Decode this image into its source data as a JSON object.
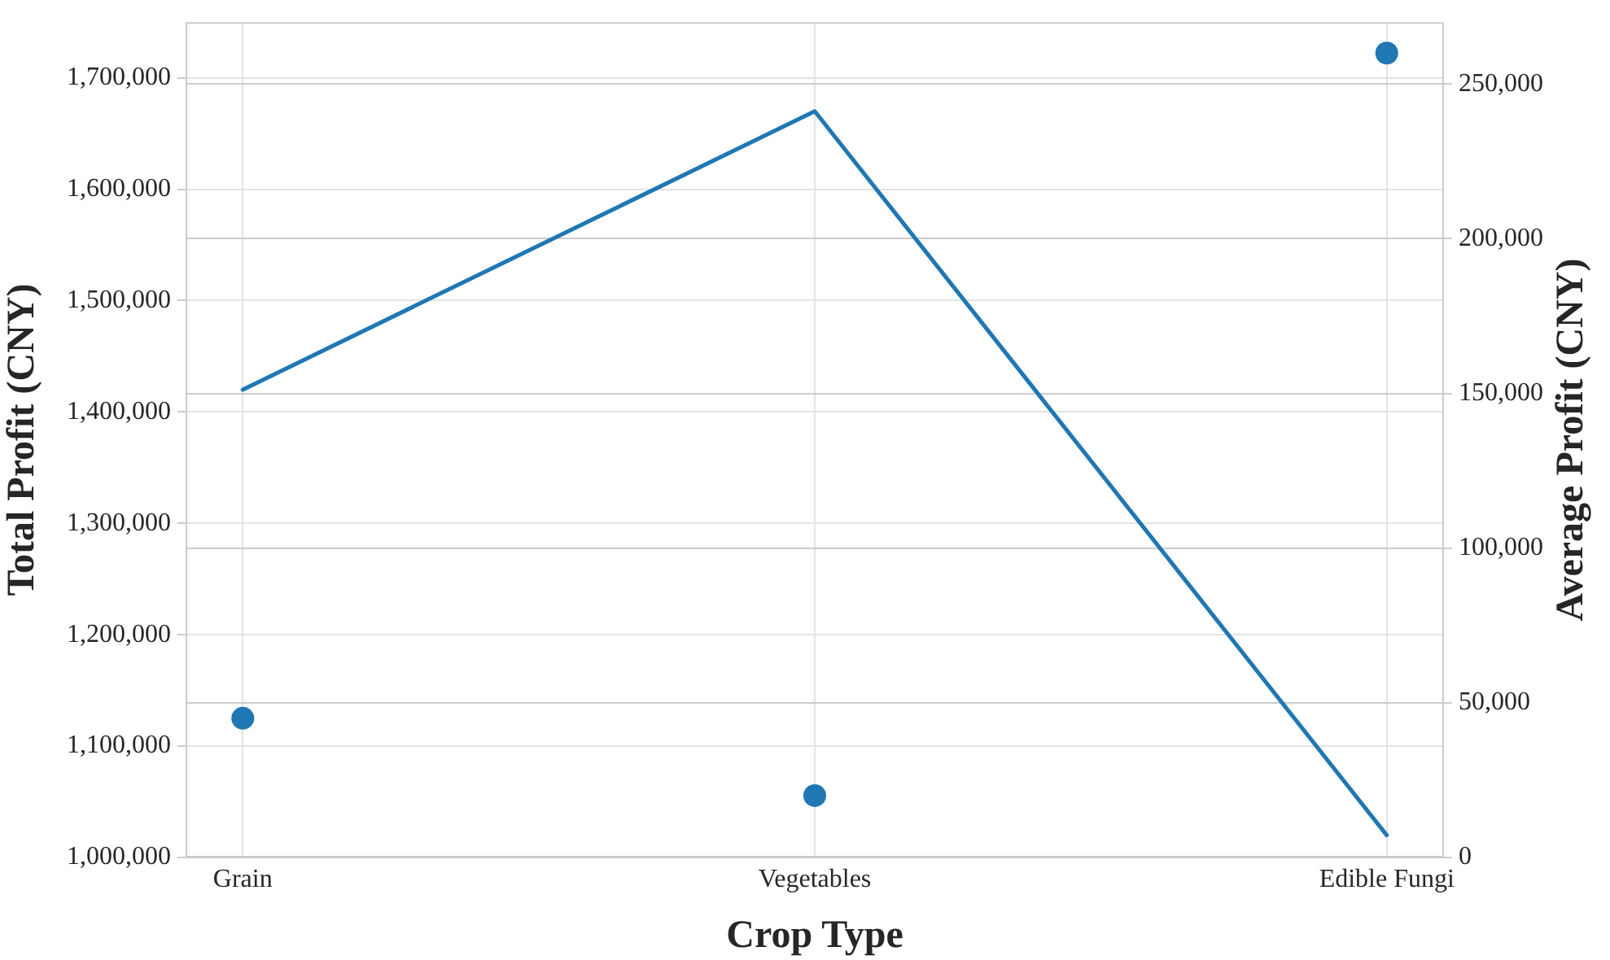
{
  "chart_data": {
    "type": "line",
    "xlabel": "Crop Type",
    "ylabel": "Total Profit (CNY)",
    "y2label": "Average Profit (CNY)",
    "categories": [
      "Grain",
      "Vegetables",
      "Edible Fungi"
    ],
    "series": [
      {
        "type": "line",
        "color": "#1f77b4",
        "marker": "none",
        "values": [
          1420000,
          1670000,
          1020000
        ]
      },
      {
        "type": "scatter",
        "axis": "y2",
        "color": "#1f77b4",
        "marker": "circle",
        "values": [
          45000,
          20000,
          260000
        ]
      }
    ],
    "ylim": [
      1000000,
      1750000
    ],
    "yticks": [
      {
        "value": 1000000,
        "label": "1,000,000"
      },
      {
        "value": 1100000,
        "label": "1,100,000"
      },
      {
        "value": 1200000,
        "label": "1,200,000"
      },
      {
        "value": 1300000,
        "label": "1,300,000"
      },
      {
        "value": 1400000,
        "label": "1,400,000"
      },
      {
        "value": 1500000,
        "label": "1,500,000"
      },
      {
        "value": 1600000,
        "label": "1,600,000"
      },
      {
        "value": 1700000,
        "label": "1,700,000"
      }
    ],
    "y2lim": [
      0,
      270000
    ],
    "y2ticks": [
      0,
      {
        "value": 50000,
        "label": "50,000"
      },
      {
        "value": 100000,
        "label": "100,000"
      },
      {
        "value": 150000,
        "label": "150,000"
      },
      {
        "value": 200000,
        "label": "200,000"
      },
      {
        "value": 250000,
        "label": "250,000"
      }
    ],
    "grid": true
  }
}
